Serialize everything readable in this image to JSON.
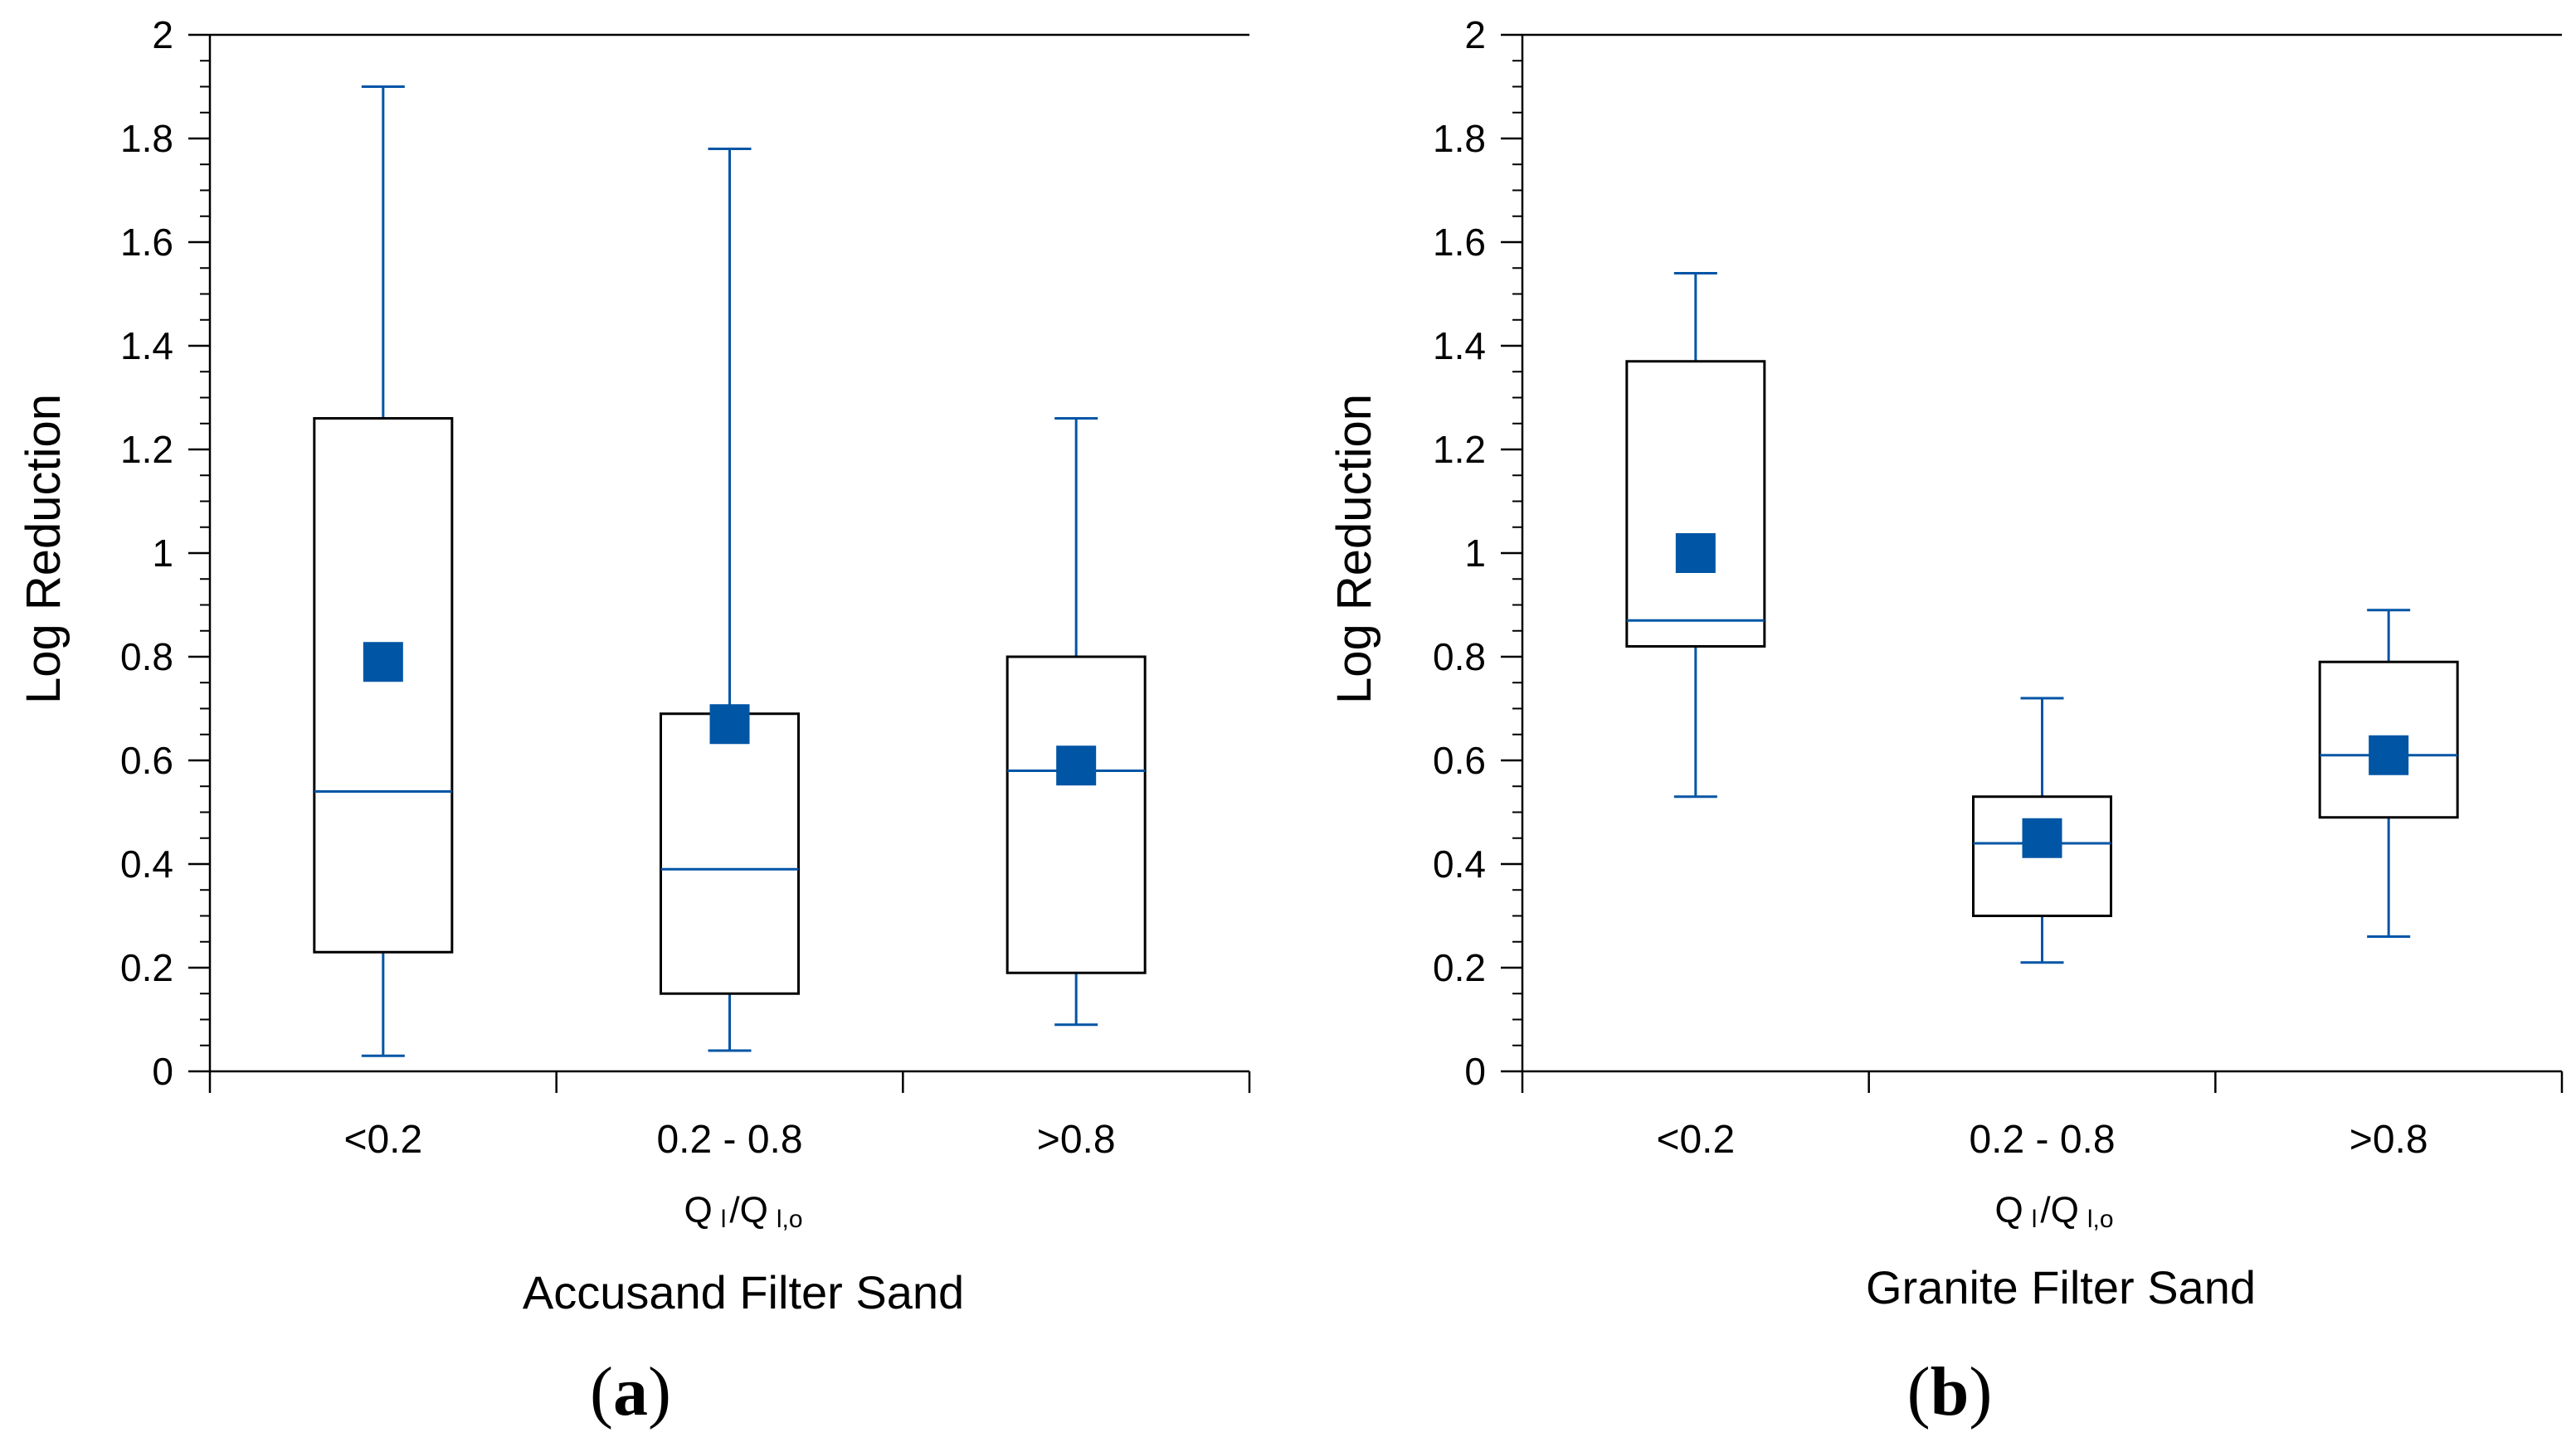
{
  "colors": {
    "accent": "#0055a5",
    "axis": "#000000",
    "box_edge": "#000000"
  },
  "chart_data": [
    {
      "type": "box",
      "panel_label": "a",
      "title": "Accusand Filter Sand",
      "ylabel": "Log Reduction",
      "xlabel": {
        "q1": "Q",
        "s1": "l",
        "sep": "/Q",
        "s2": "l,o"
      },
      "ylim": [
        0,
        2
      ],
      "yticks": [
        0,
        0.2,
        0.4,
        0.6,
        0.8,
        1,
        1.2,
        1.4,
        1.6,
        1.8,
        2
      ],
      "ytick_labels": [
        "0",
        "0.2",
        "0.4",
        "0.6",
        "0.8",
        "1",
        "1.2",
        "1.4",
        "1.6",
        "1.8",
        "2"
      ],
      "categories": [
        "<0.2",
        "0.2 - 0.8",
        ">0.8"
      ],
      "boxes": [
        {
          "whisker_low": 0.03,
          "q1": 0.23,
          "median": 0.54,
          "q3": 1.26,
          "whisker_high": 1.9,
          "mean": 0.79
        },
        {
          "whisker_low": 0.04,
          "q1": 0.15,
          "median": 0.39,
          "q3": 0.69,
          "whisker_high": 1.78,
          "mean": 0.67
        },
        {
          "whisker_low": 0.09,
          "q1": 0.19,
          "median": 0.58,
          "q3": 0.8,
          "whisker_high": 1.26,
          "mean": 0.59
        }
      ]
    },
    {
      "type": "box",
      "panel_label": "b",
      "title": "Granite Filter Sand",
      "ylabel": "Log Reduction",
      "xlabel": {
        "q1": "Q",
        "s1": "l",
        "sep": "/Q",
        "s2": "l,o"
      },
      "ylim": [
        0,
        2
      ],
      "yticks": [
        0,
        0.2,
        0.4,
        0.6,
        0.8,
        1,
        1.2,
        1.4,
        1.6,
        1.8,
        2
      ],
      "ytick_labels": [
        "0",
        "0.2",
        "0.4",
        "0.6",
        "0.8",
        "1",
        "1.2",
        "1.4",
        "1.6",
        "1.8",
        "2"
      ],
      "categories": [
        "<0.2",
        "0.2 - 0.8",
        ">0.8"
      ],
      "boxes": [
        {
          "whisker_low": 0.53,
          "q1": 0.82,
          "median": 0.87,
          "q3": 1.37,
          "whisker_high": 1.54,
          "mean": 1.0
        },
        {
          "whisker_low": 0.21,
          "q1": 0.3,
          "median": 0.44,
          "q3": 0.53,
          "whisker_high": 0.72,
          "mean": 0.45
        },
        {
          "whisker_low": 0.26,
          "q1": 0.49,
          "median": 0.61,
          "q3": 0.79,
          "whisker_high": 0.89,
          "mean": 0.61
        }
      ]
    }
  ]
}
